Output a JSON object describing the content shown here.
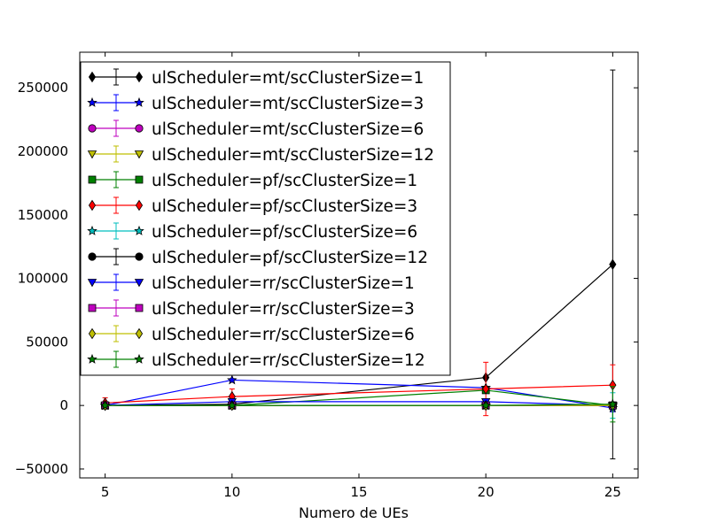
{
  "chart_data": {
    "type": "line",
    "title": "",
    "xlabel": "Numero de UEs",
    "ylabel": "",
    "xlim": [
      4,
      26
    ],
    "ylim": [
      -57000,
      278000
    ],
    "x_ticks": [
      5,
      10,
      15,
      20,
      25
    ],
    "y_ticks": [
      -50000,
      0,
      50000,
      100000,
      150000,
      200000,
      250000
    ],
    "x_tick_labels": [
      "5",
      "10",
      "15",
      "20",
      "25"
    ],
    "y_tick_labels": [
      "−50000",
      "0",
      "50000",
      "100000",
      "150000",
      "200000",
      "250000"
    ],
    "grid": false,
    "legend_position": "top-left",
    "x": [
      5,
      10,
      20,
      25
    ],
    "series": [
      {
        "name": "ulScheduler=mt/scClusterSize=1",
        "color": "#000000",
        "marker": "diamond",
        "values": [
          0,
          1000,
          22000,
          111000
        ],
        "errors": [
          0,
          1000,
          0,
          153000
        ]
      },
      {
        "name": "ulScheduler=mt/scClusterSize=3",
        "color": "#0000ff",
        "marker": "star",
        "values": [
          0,
          20000,
          14000,
          -2000
        ],
        "errors": [
          0,
          0,
          0,
          3000
        ]
      },
      {
        "name": "ulScheduler=mt/scClusterSize=6",
        "color": "#bf00bf",
        "marker": "circle",
        "values": [
          0,
          0,
          0,
          0
        ],
        "errors": [
          0,
          0,
          0,
          0
        ]
      },
      {
        "name": "ulScheduler=mt/scClusterSize=12",
        "color": "#bfbf00",
        "marker": "triangle-down",
        "values": [
          0,
          0,
          0,
          0
        ],
        "errors": [
          0,
          0,
          0,
          0
        ]
      },
      {
        "name": "ulScheduler=pf/scClusterSize=1",
        "color": "#008000",
        "marker": "square",
        "values": [
          0,
          0,
          12000,
          0
        ],
        "errors": [
          0,
          0,
          0,
          0
        ]
      },
      {
        "name": "ulScheduler=pf/scClusterSize=3",
        "color": "#ff0000",
        "marker": "diamond",
        "values": [
          2000,
          7000,
          13000,
          16000
        ],
        "errors": [
          4000,
          6000,
          21000,
          16000
        ]
      },
      {
        "name": "ulScheduler=pf/scClusterSize=6",
        "color": "#00bfbf",
        "marker": "star",
        "values": [
          0,
          0,
          0,
          0
        ],
        "errors": [
          0,
          0,
          0,
          10000
        ]
      },
      {
        "name": "ulScheduler=pf/scClusterSize=12",
        "color": "#000000",
        "marker": "circle",
        "values": [
          0,
          0,
          0,
          0
        ],
        "errors": [
          0,
          0,
          0,
          0
        ]
      },
      {
        "name": "ulScheduler=rr/scClusterSize=1",
        "color": "#0000ff",
        "marker": "triangle-down",
        "values": [
          0,
          3000,
          3000,
          0
        ],
        "errors": [
          0,
          0,
          0,
          0
        ]
      },
      {
        "name": "ulScheduler=rr/scClusterSize=3",
        "color": "#bf00bf",
        "marker": "square",
        "values": [
          0,
          0,
          0,
          0
        ],
        "errors": [
          0,
          0,
          0,
          0
        ]
      },
      {
        "name": "ulScheduler=rr/scClusterSize=6",
        "color": "#bfbf00",
        "marker": "diamond",
        "values": [
          0,
          0,
          0,
          0
        ],
        "errors": [
          0,
          0,
          0,
          0
        ]
      },
      {
        "name": "ulScheduler=rr/scClusterSize=12",
        "color": "#008000",
        "marker": "star",
        "values": [
          0,
          0,
          0,
          1000
        ],
        "errors": [
          0,
          0,
          0,
          14000
        ]
      }
    ]
  }
}
